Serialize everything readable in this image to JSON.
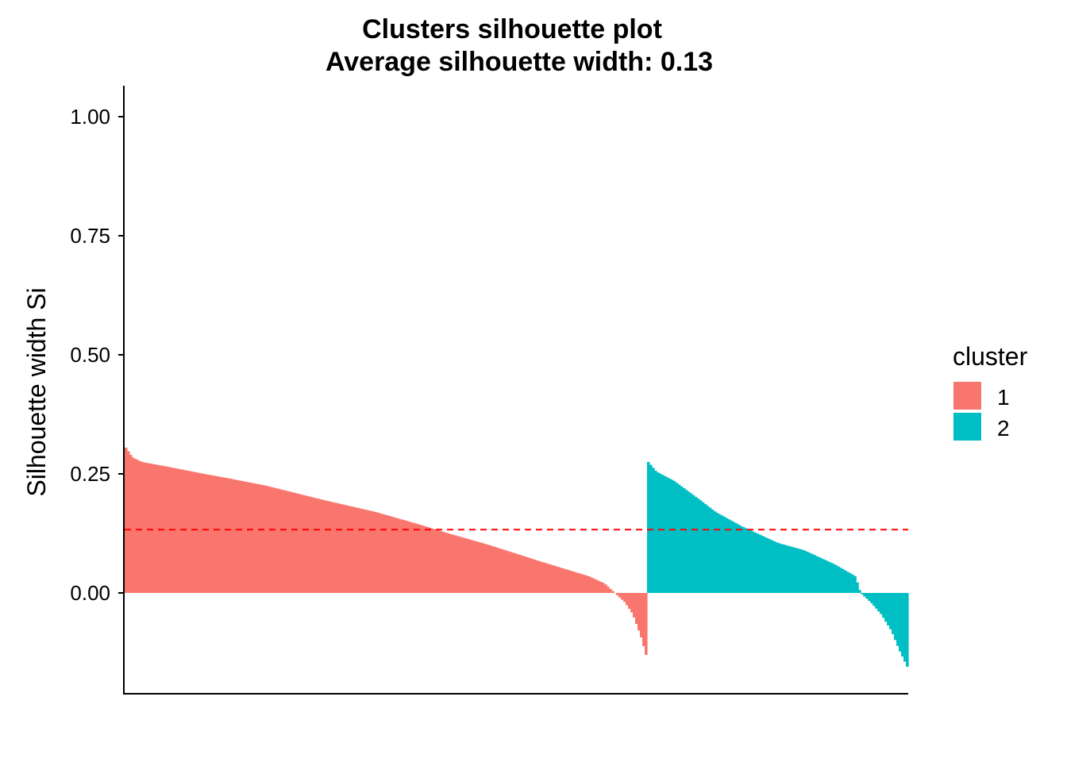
{
  "chart_data": {
    "type": "bar",
    "title": "Clusters silhouette plot",
    "subtitle": "Average silhouette width: 0.13",
    "xlabel": "",
    "ylabel": "Silhouette width Si",
    "ylim": [
      -0.21,
      1.06
    ],
    "yticks": [
      "0.00",
      "0.25",
      "0.50",
      "0.75",
      "1.00"
    ],
    "average_line": 0.133,
    "grid": false,
    "legend": {
      "title": "cluster",
      "position": "right"
    },
    "series": [
      {
        "name": "1",
        "color": "#F8766D",
        "profile": [
          [
            0,
            0.305
          ],
          [
            0.012,
            0.285
          ],
          [
            0.03,
            0.275
          ],
          [
            0.08,
            0.265
          ],
          [
            0.15,
            0.25
          ],
          [
            0.2,
            0.24
          ],
          [
            0.27,
            0.225
          ],
          [
            0.38,
            0.195
          ],
          [
            0.48,
            0.17
          ],
          [
            0.56,
            0.145
          ],
          [
            0.62,
            0.125
          ],
          [
            0.7,
            0.1
          ],
          [
            0.8,
            0.065
          ],
          [
            0.89,
            0.035
          ],
          [
            0.92,
            0.02
          ],
          [
            0.94,
            0.0
          ],
          [
            0.96,
            -0.02
          ],
          [
            0.975,
            -0.045
          ],
          [
            0.99,
            -0.09
          ],
          [
            1.0,
            -0.13
          ]
        ],
        "bar_count": 220
      },
      {
        "name": "2",
        "color": "#00BFC4",
        "profile": [
          [
            0,
            0.275
          ],
          [
            0.03,
            0.255
          ],
          [
            0.1,
            0.235
          ],
          [
            0.2,
            0.195
          ],
          [
            0.26,
            0.17
          ],
          [
            0.36,
            0.14
          ],
          [
            0.5,
            0.105
          ],
          [
            0.6,
            0.09
          ],
          [
            0.72,
            0.06
          ],
          [
            0.8,
            0.035
          ],
          [
            0.82,
            0.0
          ],
          [
            0.86,
            -0.02
          ],
          [
            0.9,
            -0.045
          ],
          [
            0.94,
            -0.08
          ],
          [
            0.97,
            -0.12
          ],
          [
            1.0,
            -0.155
          ]
        ],
        "bar_count": 110
      }
    ]
  }
}
